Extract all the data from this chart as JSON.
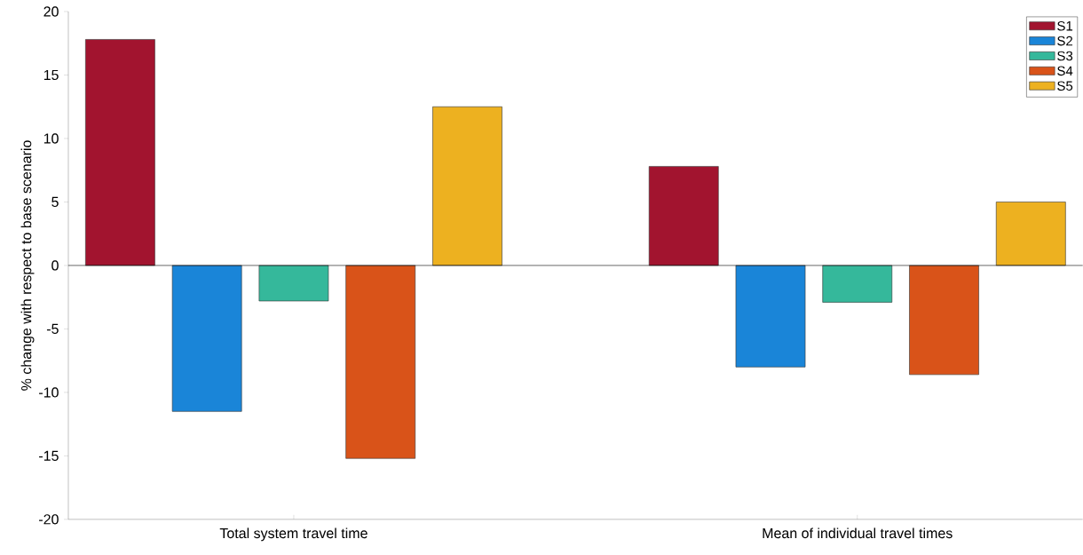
{
  "chart_data": {
    "type": "bar",
    "ylabel": "% change with respect to base scenario",
    "categories": [
      "Total system travel time",
      "Mean of individual travel times"
    ],
    "series": [
      {
        "name": "S1",
        "color": "#a2142f",
        "values": [
          17.8,
          7.8
        ]
      },
      {
        "name": "S2",
        "color": "#1a85d8",
        "values": [
          -11.5,
          -8.0
        ]
      },
      {
        "name": "S3",
        "color": "#35b89b",
        "values": [
          -2.8,
          -2.9
        ]
      },
      {
        "name": "S4",
        "color": "#d95319",
        "values": [
          -15.2,
          -8.6
        ]
      },
      {
        "name": "S5",
        "color": "#edb120",
        "values": [
          12.5,
          5.0
        ]
      }
    ],
    "ylim": [
      -20,
      20
    ],
    "yticks": [
      -20,
      -15,
      -10,
      -5,
      0,
      5,
      10,
      15,
      20
    ],
    "ref_lines": [
      {
        "axis": "y",
        "value": 0,
        "color": "#000000"
      }
    ],
    "grid": false,
    "legend": "top right"
  }
}
